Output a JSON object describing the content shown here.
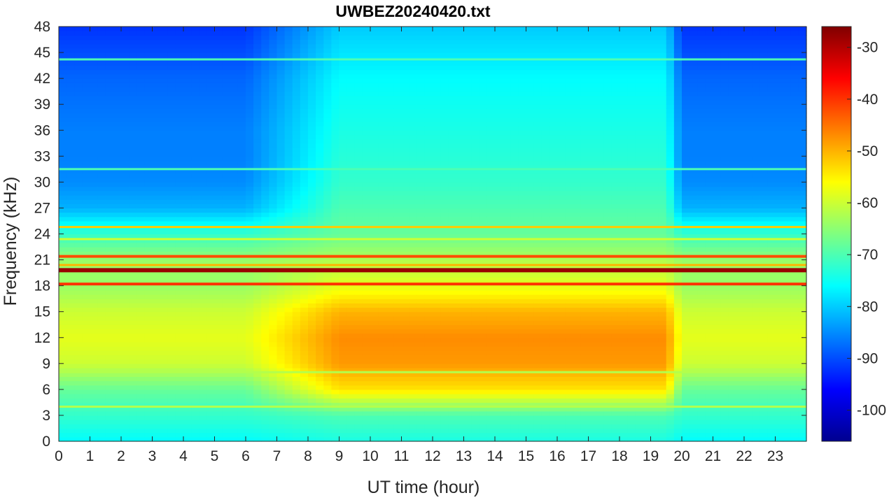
{
  "chart_data": {
    "type": "heatmap",
    "title": "UWBEZ20240420.txt",
    "xlabel": "UT time (hour)",
    "ylabel": "Frequency (kHz)",
    "x_ticks": [
      "0",
      "1",
      "2",
      "3",
      "4",
      "5",
      "6",
      "7",
      "8",
      "9",
      "10",
      "11",
      "12",
      "13",
      "14",
      "15",
      "16",
      "17",
      "18",
      "19",
      "20",
      "21",
      "22",
      "23"
    ],
    "y_ticks": [
      "0",
      "3",
      "6",
      "9",
      "12",
      "15",
      "18",
      "21",
      "24",
      "27",
      "30",
      "33",
      "36",
      "39",
      "42",
      "45",
      "48"
    ],
    "xlim": [
      0,
      24
    ],
    "ylim": [
      0,
      48
    ],
    "colorbar": {
      "ticks": [
        "-30",
        "-40",
        "-50",
        "-60",
        "-70",
        "-80",
        "-90",
        "-100"
      ],
      "range": [
        -106,
        -26
      ],
      "colormap": "jet"
    },
    "background_levels_dB": {
      "freq_kHz": [
        0,
        3,
        6,
        9,
        12,
        15,
        18,
        21,
        24,
        27,
        30,
        33,
        36,
        39,
        42,
        45,
        48
      ],
      "night_hours_0_6_and_20_24": [
        -76,
        -72,
        -68,
        -60,
        -58,
        -60,
        -64,
        -64,
        -72,
        -82,
        -85,
        -86,
        -86,
        -87,
        -88,
        -90,
        -92
      ],
      "day_hours_9_19": [
        -74,
        -70,
        -54,
        -48,
        -47,
        -50,
        -58,
        -62,
        -68,
        -70,
        -72,
        -73,
        -74,
        -75,
        -76,
        -78,
        -80
      ]
    },
    "narrowband_lines": [
      {
        "freq_kHz": 19.8,
        "level_dB": -28
      },
      {
        "freq_kHz": 18.2,
        "level_dB": -40
      },
      {
        "freq_kHz": 21.4,
        "level_dB": -42
      },
      {
        "freq_kHz": 20.4,
        "level_dB": -50
      },
      {
        "freq_kHz": 24.8,
        "level_dB": -52
      },
      {
        "freq_kHz": 23.4,
        "level_dB": -60
      },
      {
        "freq_kHz": 44.2,
        "level_dB": -70
      },
      {
        "freq_kHz": 31.5,
        "level_dB": -70
      },
      {
        "freq_kHz": 4.0,
        "level_dB": -62
      },
      {
        "freq_kHz": 8.0,
        "level_dB": -62
      }
    ]
  }
}
